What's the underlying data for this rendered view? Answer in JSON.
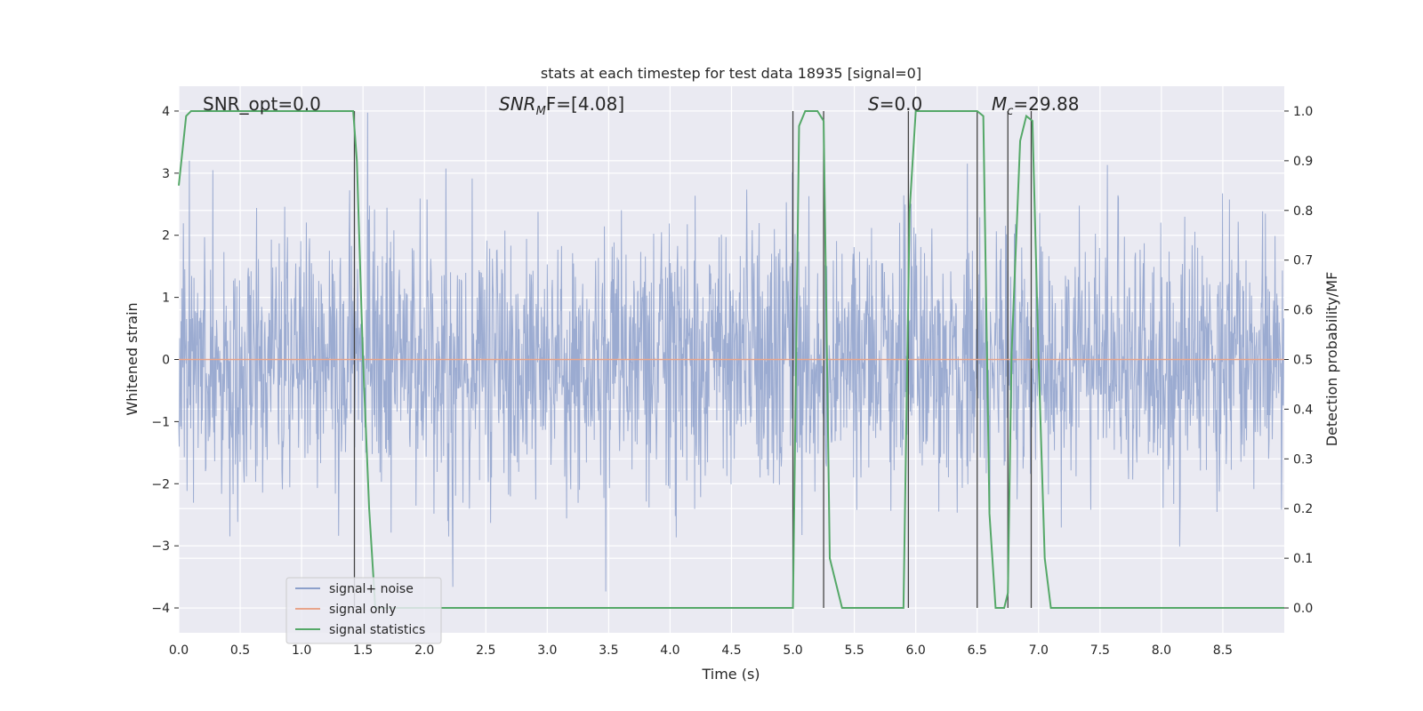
{
  "chart_data": {
    "type": "line",
    "title": "stats at each timestep for test data 18935 [signal=0]",
    "xlabel": "Time (s)",
    "ylabel": "Whitened strain",
    "y2label": "Detection probability/MF",
    "xlim": [
      0,
      9
    ],
    "ylim": [
      -4.4,
      4.4
    ],
    "y2lim": [
      -0.05,
      1.05
    ],
    "xticks": [
      "0.0",
      "0.5",
      "1.0",
      "1.5",
      "2.0",
      "2.5",
      "3.0",
      "3.5",
      "4.0",
      "4.5",
      "5.0",
      "5.5",
      "6.0",
      "6.5",
      "7.0",
      "7.5",
      "8.0",
      "8.5"
    ],
    "yticks": [
      "−4",
      "−3",
      "−2",
      "−1",
      "0",
      "1",
      "2",
      "3",
      "4"
    ],
    "y2ticks": [
      "0.0",
      "0.1",
      "0.2",
      "0.3",
      "0.4",
      "0.5",
      "0.6",
      "0.7",
      "0.8",
      "0.9",
      "1.0"
    ],
    "grid": true,
    "legend_position": "lower-left",
    "annotations": {
      "snr_opt": "SNR_opt=0.0",
      "snr_mf_main": "SNR",
      "snr_mf_sub": "M",
      "snr_mf_tail": "F=[4.08]",
      "s_main": "S",
      "s_tail": "=0.0",
      "mc_main": "M",
      "mc_sub": "c",
      "mc_tail": "=29.88"
    },
    "series": [
      {
        "name": "signal+ noise",
        "color": "#8da0cb",
        "style": "dense whitened noise, approx. within ±2.5 with peaks to ±4"
      },
      {
        "name": "signal only",
        "color": "#e8a48a",
        "values_note": "flat at 0"
      },
      {
        "name": "signal statistics",
        "color": "#55a868",
        "x": [
          0.0,
          0.06,
          0.1,
          0.2,
          1.3,
          1.42,
          1.45,
          1.5,
          1.55,
          1.6,
          2.0,
          4.9,
          5.0,
          5.05,
          5.1,
          5.15,
          5.2,
          5.25,
          5.3,
          5.4,
          5.8,
          5.9,
          5.95,
          6.0,
          6.1,
          6.5,
          6.55,
          6.6,
          6.65,
          6.72,
          6.75,
          6.78,
          6.85,
          6.9,
          6.95,
          7.0,
          7.05,
          7.1,
          9.0
        ],
        "values": [
          0.85,
          0.99,
          1.0,
          1.0,
          1.0,
          1.0,
          0.9,
          0.5,
          0.2,
          0.0,
          0.0,
          0.0,
          0.0,
          0.97,
          1.0,
          1.0,
          1.0,
          0.98,
          0.1,
          0.0,
          0.0,
          0.0,
          0.8,
          1.0,
          1.0,
          1.0,
          0.99,
          0.19,
          0.0,
          0.0,
          0.03,
          0.51,
          0.94,
          0.99,
          0.98,
          0.5,
          0.1,
          0.0,
          0.0
        ]
      }
    ],
    "vertical_markers": [
      1.43,
      5.0,
      5.25,
      5.94,
      6.5,
      6.75,
      6.94
    ]
  }
}
